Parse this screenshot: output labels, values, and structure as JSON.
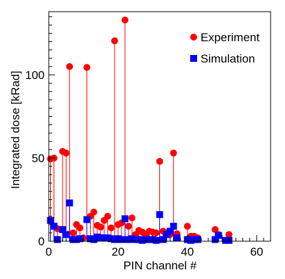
{
  "chart_data": {
    "type": "scatter",
    "title": "",
    "xlabel": "PIN channel #",
    "ylabel": "Integrated dose [kRad]",
    "xlim": [
      0,
      64
    ],
    "ylim": [
      0,
      138
    ],
    "xticks": [
      0,
      20,
      40,
      60
    ],
    "yticks": [
      0,
      50,
      100
    ],
    "grid": false,
    "legend_position": "top-right",
    "series": [
      {
        "name": "Experiment",
        "color": "#ff0000",
        "marker": "circle",
        "drop_lines": true,
        "points": [
          [
            0.5,
            49.5
          ],
          [
            1.5,
            50
          ],
          [
            2.5,
            7.5
          ],
          [
            4,
            54
          ],
          [
            5,
            53
          ],
          [
            6,
            105
          ],
          [
            7,
            5
          ],
          [
            8,
            10
          ],
          [
            9,
            8
          ],
          [
            10,
            2
          ],
          [
            11,
            104.5
          ],
          [
            12,
            15
          ],
          [
            13,
            17.5
          ],
          [
            14,
            9.5
          ],
          [
            15,
            8.5
          ],
          [
            16,
            12.5
          ],
          [
            17,
            15
          ],
          [
            18,
            8
          ],
          [
            19,
            120.5
          ],
          [
            20,
            10
          ],
          [
            21,
            11
          ],
          [
            22,
            133
          ],
          [
            23,
            9
          ],
          [
            24,
            14
          ],
          [
            25,
            4
          ],
          [
            26,
            6.5
          ],
          [
            27,
            5.5
          ],
          [
            28,
            4
          ],
          [
            29,
            6
          ],
          [
            30,
            5.5
          ],
          [
            31,
            5
          ],
          [
            32,
            48
          ],
          [
            33,
            6
          ],
          [
            34,
            5
          ],
          [
            35,
            4
          ],
          [
            36,
            53
          ],
          [
            37,
            4.5
          ],
          [
            40,
            9
          ],
          [
            41,
            3
          ],
          [
            42,
            3
          ],
          [
            43,
            2
          ],
          [
            48,
            7
          ],
          [
            49,
            4
          ],
          [
            52,
            4
          ]
        ]
      },
      {
        "name": "Simulation",
        "color": "#0000ff",
        "marker": "square",
        "drop_lines": true,
        "points": [
          [
            0.5,
            12.5
          ],
          [
            1.5,
            9
          ],
          [
            2.5,
            1
          ],
          [
            4,
            7
          ],
          [
            5,
            4
          ],
          [
            6,
            23
          ],
          [
            7,
            1
          ],
          [
            8,
            1
          ],
          [
            9,
            1.5
          ],
          [
            11,
            13
          ],
          [
            12,
            1.5
          ],
          [
            13,
            1
          ],
          [
            14,
            2.5
          ],
          [
            15,
            2
          ],
          [
            16,
            2
          ],
          [
            17,
            2
          ],
          [
            18,
            1.5
          ],
          [
            19,
            1
          ],
          [
            20,
            1.5
          ],
          [
            21,
            1
          ],
          [
            22,
            13.5
          ],
          [
            23,
            1
          ],
          [
            24,
            1.5
          ],
          [
            25,
            1
          ],
          [
            26,
            1
          ],
          [
            27,
            0.5
          ],
          [
            28,
            1
          ],
          [
            29,
            1
          ],
          [
            30,
            1
          ],
          [
            31,
            0.5
          ],
          [
            32,
            16
          ],
          [
            33,
            1
          ],
          [
            34,
            4
          ],
          [
            35,
            6
          ],
          [
            36,
            9
          ],
          [
            37,
            2
          ],
          [
            40,
            1
          ],
          [
            41,
            0.5
          ],
          [
            42,
            1
          ],
          [
            43,
            1
          ],
          [
            48,
            1
          ],
          [
            49,
            3.5
          ],
          [
            51,
            0.5
          ],
          [
            52,
            0.5
          ]
        ]
      }
    ]
  }
}
